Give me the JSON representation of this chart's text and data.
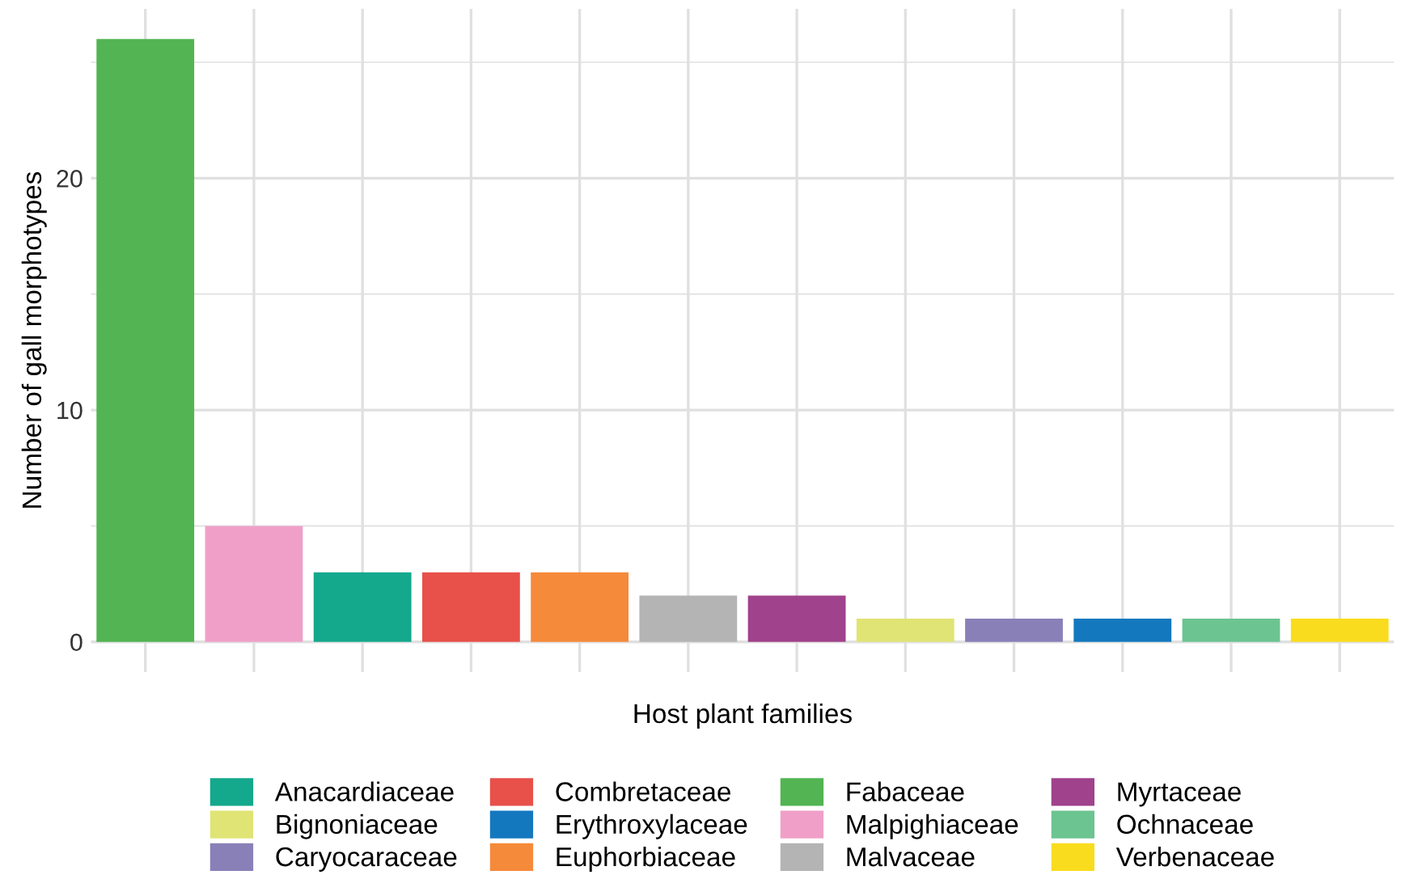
{
  "chart_data": {
    "type": "bar",
    "xlabel": "Host plant families",
    "ylabel": "Number of gall morphotypes",
    "categories": [
      null,
      null,
      null,
      null,
      null,
      null,
      null,
      null,
      null,
      null,
      null,
      null
    ],
    "series": [
      {
        "name": "Anacardiaceae",
        "color": "#14a88c",
        "values": [
          null,
          null,
          3,
          null,
          null,
          null,
          null,
          null,
          null,
          null,
          null,
          null
        ]
      },
      {
        "name": "Bignoniaceae",
        "color": "#e0e474",
        "values": [
          null,
          null,
          null,
          null,
          null,
          null,
          null,
          1,
          null,
          null,
          null,
          null
        ]
      },
      {
        "name": "Caryocaraceae",
        "color": "#8a80b8",
        "values": [
          null,
          null,
          null,
          null,
          null,
          null,
          null,
          null,
          1,
          null,
          null,
          null
        ]
      },
      {
        "name": "Combretaceae",
        "color": "#e8504a",
        "values": [
          null,
          null,
          null,
          3,
          null,
          null,
          null,
          null,
          null,
          null,
          null,
          null
        ]
      },
      {
        "name": "Erythroxylaceae",
        "color": "#1478be",
        "values": [
          null,
          null,
          null,
          null,
          null,
          null,
          null,
          null,
          null,
          1,
          null,
          null
        ]
      },
      {
        "name": "Euphorbiaceae",
        "color": "#f58a3a",
        "values": [
          null,
          null,
          null,
          null,
          3,
          null,
          null,
          null,
          null,
          null,
          null,
          null
        ]
      },
      {
        "name": "Fabaceae",
        "color": "#52b452",
        "values": [
          26,
          null,
          null,
          null,
          null,
          null,
          null,
          null,
          null,
          null,
          null,
          null
        ]
      },
      {
        "name": "Malpighiaceae",
        "color": "#f0a0c8",
        "values": [
          null,
          5,
          null,
          null,
          null,
          null,
          null,
          null,
          null,
          null,
          null,
          null
        ]
      },
      {
        "name": "Malvaceae",
        "color": "#b4b4b4",
        "values": [
          null,
          null,
          null,
          null,
          null,
          2,
          null,
          null,
          null,
          null,
          null,
          null
        ]
      },
      {
        "name": "Myrtaceae",
        "color": "#a0428c",
        "values": [
          null,
          null,
          null,
          null,
          null,
          null,
          2,
          null,
          null,
          null,
          null,
          null
        ]
      },
      {
        "name": "Ochnaceae",
        "color": "#6cc490",
        "values": [
          null,
          null,
          null,
          null,
          null,
          null,
          null,
          null,
          null,
          null,
          1,
          null
        ]
      },
      {
        "name": "Verbenaceae",
        "color": "#fadc1e",
        "values": [
          null,
          null,
          null,
          null,
          null,
          null,
          null,
          null,
          null,
          null,
          null,
          1
        ]
      }
    ],
    "ylim": [
      -1.3,
      27.3
    ],
    "yticks": [
      0,
      {
        "value": 5,
        "label": null
      },
      10,
      {
        "value": 15,
        "label": null
      },
      20,
      {
        "value": 25,
        "label": null
      }
    ],
    "grid": true,
    "legend": "bottom",
    "tick_labels": "y"
  }
}
